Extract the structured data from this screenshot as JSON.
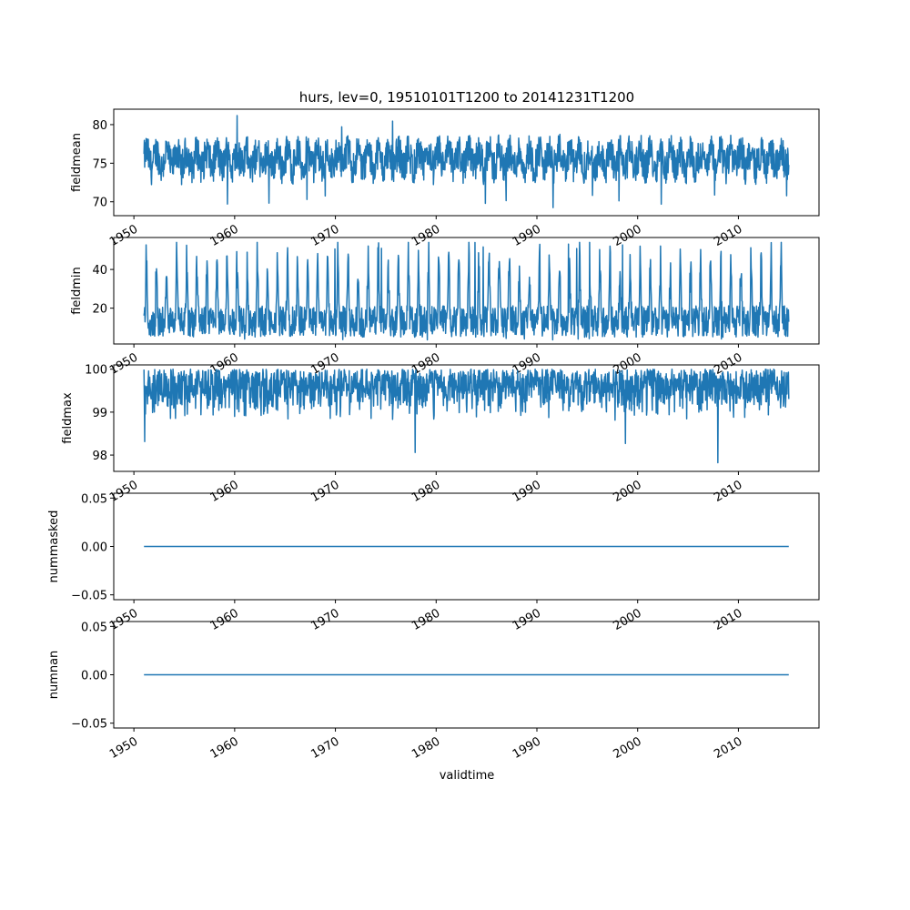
{
  "figure": {
    "title": "hurs, lev=0, 19510101T1200 to 20141231T1200",
    "xlabel": "validtime",
    "line_color": "#1f77b4"
  },
  "chart_data": [
    {
      "type": "line",
      "ylabel": "fieldmean",
      "xlim": [
        1948,
        2018
      ],
      "ylim": [
        68.2,
        82.0
      ],
      "x_ticks": [
        1950,
        1960,
        1970,
        1980,
        1990,
        2000,
        2010
      ],
      "y_ticks": [
        70,
        75,
        80
      ],
      "y_tick_labels": [
        "70",
        "75",
        "80"
      ],
      "x_range": [
        1951.0,
        2015.0
      ],
      "series": [
        {
          "values_summary": {
            "typical_min": 72.5,
            "typical_max": 78.5,
            "min": 68.6,
            "max": 81.2,
            "mean": 75.5
          }
        }
      ]
    },
    {
      "type": "line",
      "ylabel": "fieldmin",
      "xlim": [
        1948,
        2018
      ],
      "ylim": [
        1.5,
        56.5
      ],
      "x_ticks": [
        1950,
        1960,
        1970,
        1980,
        1990,
        2000,
        2010
      ],
      "y_ticks": [
        20,
        40
      ],
      "y_tick_labels": [
        "20",
        "40"
      ],
      "x_range": [
        1951.0,
        2015.0
      ],
      "series": [
        {
          "values_summary": {
            "typical_min": 5,
            "typical_max": 47,
            "min": 3.5,
            "max": 54,
            "mean": 14
          }
        }
      ]
    },
    {
      "type": "line",
      "ylabel": "fieldmax",
      "xlim": [
        1948,
        2018
      ],
      "ylim": [
        97.62,
        100.1
      ],
      "x_ticks": [
        1950,
        1960,
        1970,
        1980,
        1990,
        2000,
        2010
      ],
      "y_ticks": [
        98,
        99,
        100
      ],
      "y_tick_labels": [
        "98",
        "99",
        "100"
      ],
      "x_range": [
        1951.0,
        2015.0
      ],
      "series": [
        {
          "values_summary": {
            "typical_min": 98.8,
            "typical_max": 100.0,
            "min": 97.75,
            "max": 100.0,
            "mean": 99.6
          }
        }
      ]
    },
    {
      "type": "line",
      "ylabel": "nummasked",
      "xlim": [
        1948,
        2018
      ],
      "ylim": [
        -0.055,
        0.055
      ],
      "x_ticks": [
        1950,
        1960,
        1970,
        1980,
        1990,
        2000,
        2010
      ],
      "y_ticks": [
        -0.05,
        0.0,
        0.05
      ],
      "y_tick_labels": [
        "−0.05",
        "0.00",
        "0.05"
      ],
      "x_range": [
        1951.0,
        2015.0
      ],
      "series": [
        {
          "values_summary": {
            "constant": 0.0
          }
        }
      ]
    },
    {
      "type": "line",
      "ylabel": "numnan",
      "xlim": [
        1948,
        2018
      ],
      "ylim": [
        -0.055,
        0.055
      ],
      "x_ticks": [
        1950,
        1960,
        1970,
        1980,
        1990,
        2000,
        2010
      ],
      "y_ticks": [
        -0.05,
        0.0,
        0.05
      ],
      "y_tick_labels": [
        "−0.05",
        "0.00",
        "0.05"
      ],
      "x_range": [
        1951.0,
        2015.0
      ],
      "series": [
        {
          "values_summary": {
            "constant": 0.0
          }
        }
      ]
    }
  ]
}
